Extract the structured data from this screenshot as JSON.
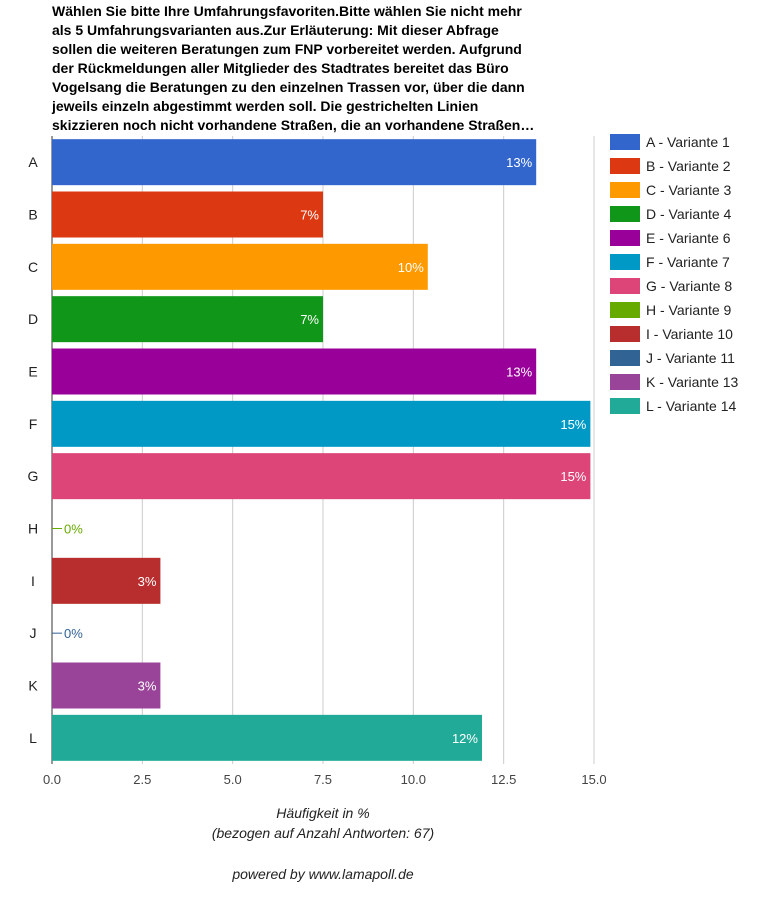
{
  "chart_data": {
    "type": "bar",
    "orientation": "horizontal",
    "title_lines": [
      "Wählen Sie bitte Ihre Umfahrungsfavoriten.Bitte wählen Sie nicht mehr",
      "als 5 Umfahrungsvarianten aus.Zur Erläuterung: Mit dieser Abfrage",
      "sollen die weiteren Beratungen zum FNP vorbereitet werden. Aufgrund",
      "der Rückmeldungen aller Mitglieder des Stadtrates bereitet das Büro",
      "Vogelsang die Beratungen zu den einzelnen Trassen vor, über die dann",
      "jeweils einzeln abgestimmt werden soll. Die gestrichelten Linien",
      "skizzieren noch nicht vorhandene Straßen, die an vorhandene Straßen…"
    ],
    "categories": [
      "A",
      "B",
      "C",
      "D",
      "E",
      "F",
      "G",
      "H",
      "I",
      "J",
      "K",
      "L"
    ],
    "values": [
      13.4,
      7.5,
      10.4,
      7.5,
      13.4,
      14.9,
      14.9,
      0,
      3,
      0,
      3,
      11.9
    ],
    "value_labels": [
      "13%",
      "7%",
      "10%",
      "7%",
      "13%",
      "15%",
      "15%",
      "0%",
      "3%",
      "0%",
      "3%",
      "12%"
    ],
    "colors": [
      "#3366cc",
      "#dc3912",
      "#ff9900",
      "#109618",
      "#990099",
      "#0099c6",
      "#dd4477",
      "#66aa00",
      "#b82e2e",
      "#316395",
      "#994499",
      "#22aa99"
    ],
    "legend": [
      "A - Variante 1",
      "B - Variante 2",
      "C - Variante 3",
      "D - Variante 4",
      "E - Variante 6",
      "F - Variante 7",
      "G - Variante 8",
      "H - Variante 9",
      "I - Variante 10",
      "J - Variante 11",
      "K - Variante 13",
      "L - Variante 14"
    ],
    "legend_position": "right",
    "xlim": [
      0,
      15
    ],
    "xticks": [
      "0.0",
      "2.5",
      "5.0",
      "7.5",
      "10.0",
      "12.5",
      "15.0"
    ],
    "xlabel_line1": "Häufigkeit in %",
    "xlabel_line2": "(bezogen auf Anzahl Antworten: 67)",
    "grid": true
  },
  "footer": {
    "powered_by": "powered by www.lamapoll.de"
  }
}
